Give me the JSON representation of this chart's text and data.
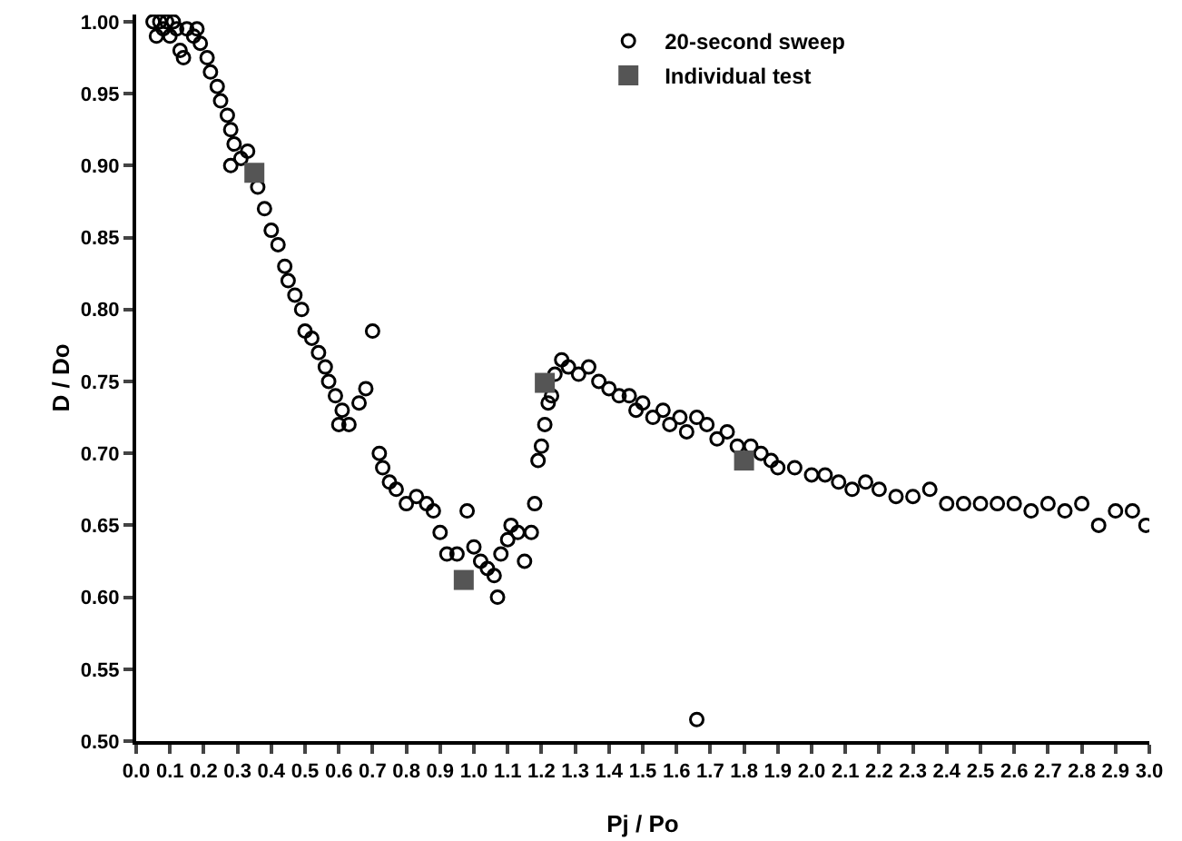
{
  "chart_data": {
    "type": "scatter",
    "xlabel": "Pj / Po",
    "ylabel": "D / Do",
    "xlim": [
      0,
      3
    ],
    "ylim": [
      0.5,
      1.005
    ],
    "xticks": [
      {
        "value": 0,
        "label": "0.0"
      },
      0.1,
      0.2,
      0.3,
      0.4,
      0.5,
      0.6,
      0.7,
      0.8,
      0.9,
      {
        "value": 1,
        "label": "1.0"
      },
      1.1,
      1.2,
      1.3,
      1.4,
      1.5,
      1.6,
      1.7,
      1.8,
      1.9,
      {
        "value": 2,
        "label": "2.0"
      },
      2.1,
      2.2,
      2.3,
      2.4,
      2.5,
      2.6,
      2.7,
      2.8,
      2.9,
      {
        "value": 3,
        "label": "3.0"
      }
    ],
    "yticks": [
      {
        "value": 0.5,
        "label": "0.50"
      },
      0.55,
      {
        "value": 0.6,
        "label": "0.60"
      },
      0.65,
      {
        "value": 0.7,
        "label": "0.70"
      },
      0.75,
      {
        "value": 0.8,
        "label": "0.80"
      },
      0.85,
      {
        "value": 0.9,
        "label": "0.90"
      },
      0.95,
      {
        "value": 1,
        "label": "1.00"
      }
    ],
    "grid": false,
    "legend": "top",
    "marker": "circle",
    "series": [
      {
        "name": "20-second sweep",
        "color": "#000000",
        "x": [
          0.05,
          0.06,
          0.07,
          0.08,
          0.09,
          0.1,
          0.11,
          0.12,
          0.13,
          0.14,
          0.15,
          0.17,
          0.18,
          0.19,
          0.21,
          0.22,
          0.24,
          0.25,
          0.27,
          0.28,
          0.29,
          0.28,
          0.31,
          0.33,
          0.36,
          0.38,
          0.4,
          0.42,
          0.44,
          0.45,
          0.47,
          0.49,
          0.5,
          0.52,
          0.54,
          0.56,
          0.57,
          0.59,
          0.61,
          0.63,
          0.6,
          0.66,
          0.7,
          0.68,
          0.72,
          0.73,
          0.75,
          0.77,
          0.8,
          0.83,
          0.86,
          0.88,
          0.9,
          0.92,
          0.95,
          0.98,
          1.0,
          1.02,
          1.04,
          1.06,
          1.07,
          1.08,
          1.1,
          1.11,
          1.13,
          1.15,
          1.17,
          1.18,
          1.19,
          1.2,
          1.21,
          1.22,
          1.23,
          1.24,
          1.26,
          1.28,
          1.31,
          1.34,
          1.37,
          1.4,
          1.43,
          1.46,
          1.48,
          1.5,
          1.53,
          1.56,
          1.58,
          1.61,
          1.63,
          1.66,
          1.69,
          1.72,
          1.75,
          1.78,
          1.82,
          1.85,
          1.88,
          1.9,
          1.95,
          2.0,
          2.04,
          2.08,
          2.12,
          2.16,
          2.2,
          2.25,
          2.3,
          2.35,
          2.4,
          2.45,
          2.5,
          2.55,
          2.6,
          2.65,
          2.7,
          2.75,
          2.8,
          2.85,
          2.9,
          2.95,
          2.99,
          1.66
        ],
        "values": [
          1.0,
          0.99,
          1.0,
          0.995,
          1.0,
          0.99,
          1.0,
          0.995,
          0.98,
          0.975,
          0.995,
          0.99,
          0.995,
          0.985,
          0.975,
          0.965,
          0.955,
          0.945,
          0.935,
          0.925,
          0.915,
          0.9,
          0.905,
          0.91,
          0.885,
          0.87,
          0.855,
          0.845,
          0.83,
          0.82,
          0.81,
          0.8,
          0.785,
          0.78,
          0.77,
          0.76,
          0.75,
          0.74,
          0.73,
          0.72,
          0.72,
          0.735,
          0.785,
          0.745,
          0.7,
          0.69,
          0.68,
          0.675,
          0.665,
          0.67,
          0.665,
          0.66,
          0.645,
          0.63,
          0.63,
          0.66,
          0.635,
          0.625,
          0.62,
          0.615,
          0.6,
          0.63,
          0.64,
          0.65,
          0.645,
          0.625,
          0.645,
          0.665,
          0.695,
          0.705,
          0.72,
          0.735,
          0.74,
          0.755,
          0.765,
          0.76,
          0.755,
          0.76,
          0.75,
          0.745,
          0.74,
          0.74,
          0.73,
          0.735,
          0.725,
          0.73,
          0.72,
          0.725,
          0.715,
          0.725,
          0.72,
          0.71,
          0.715,
          0.705,
          0.705,
          0.7,
          0.695,
          0.69,
          0.69,
          0.685,
          0.685,
          0.68,
          0.675,
          0.68,
          0.675,
          0.67,
          0.67,
          0.675,
          0.665,
          0.665,
          0.665,
          0.665,
          0.665,
          0.66,
          0.665,
          0.66,
          0.665,
          0.65,
          0.66,
          0.66,
          0.65,
          0.515
        ]
      },
      {
        "name": "Individual test",
        "color": "#555555",
        "marker": "square",
        "x": [
          0.35,
          0.97,
          1.21,
          1.8
        ],
        "values": [
          0.895,
          0.612,
          0.749,
          0.695
        ]
      }
    ]
  }
}
